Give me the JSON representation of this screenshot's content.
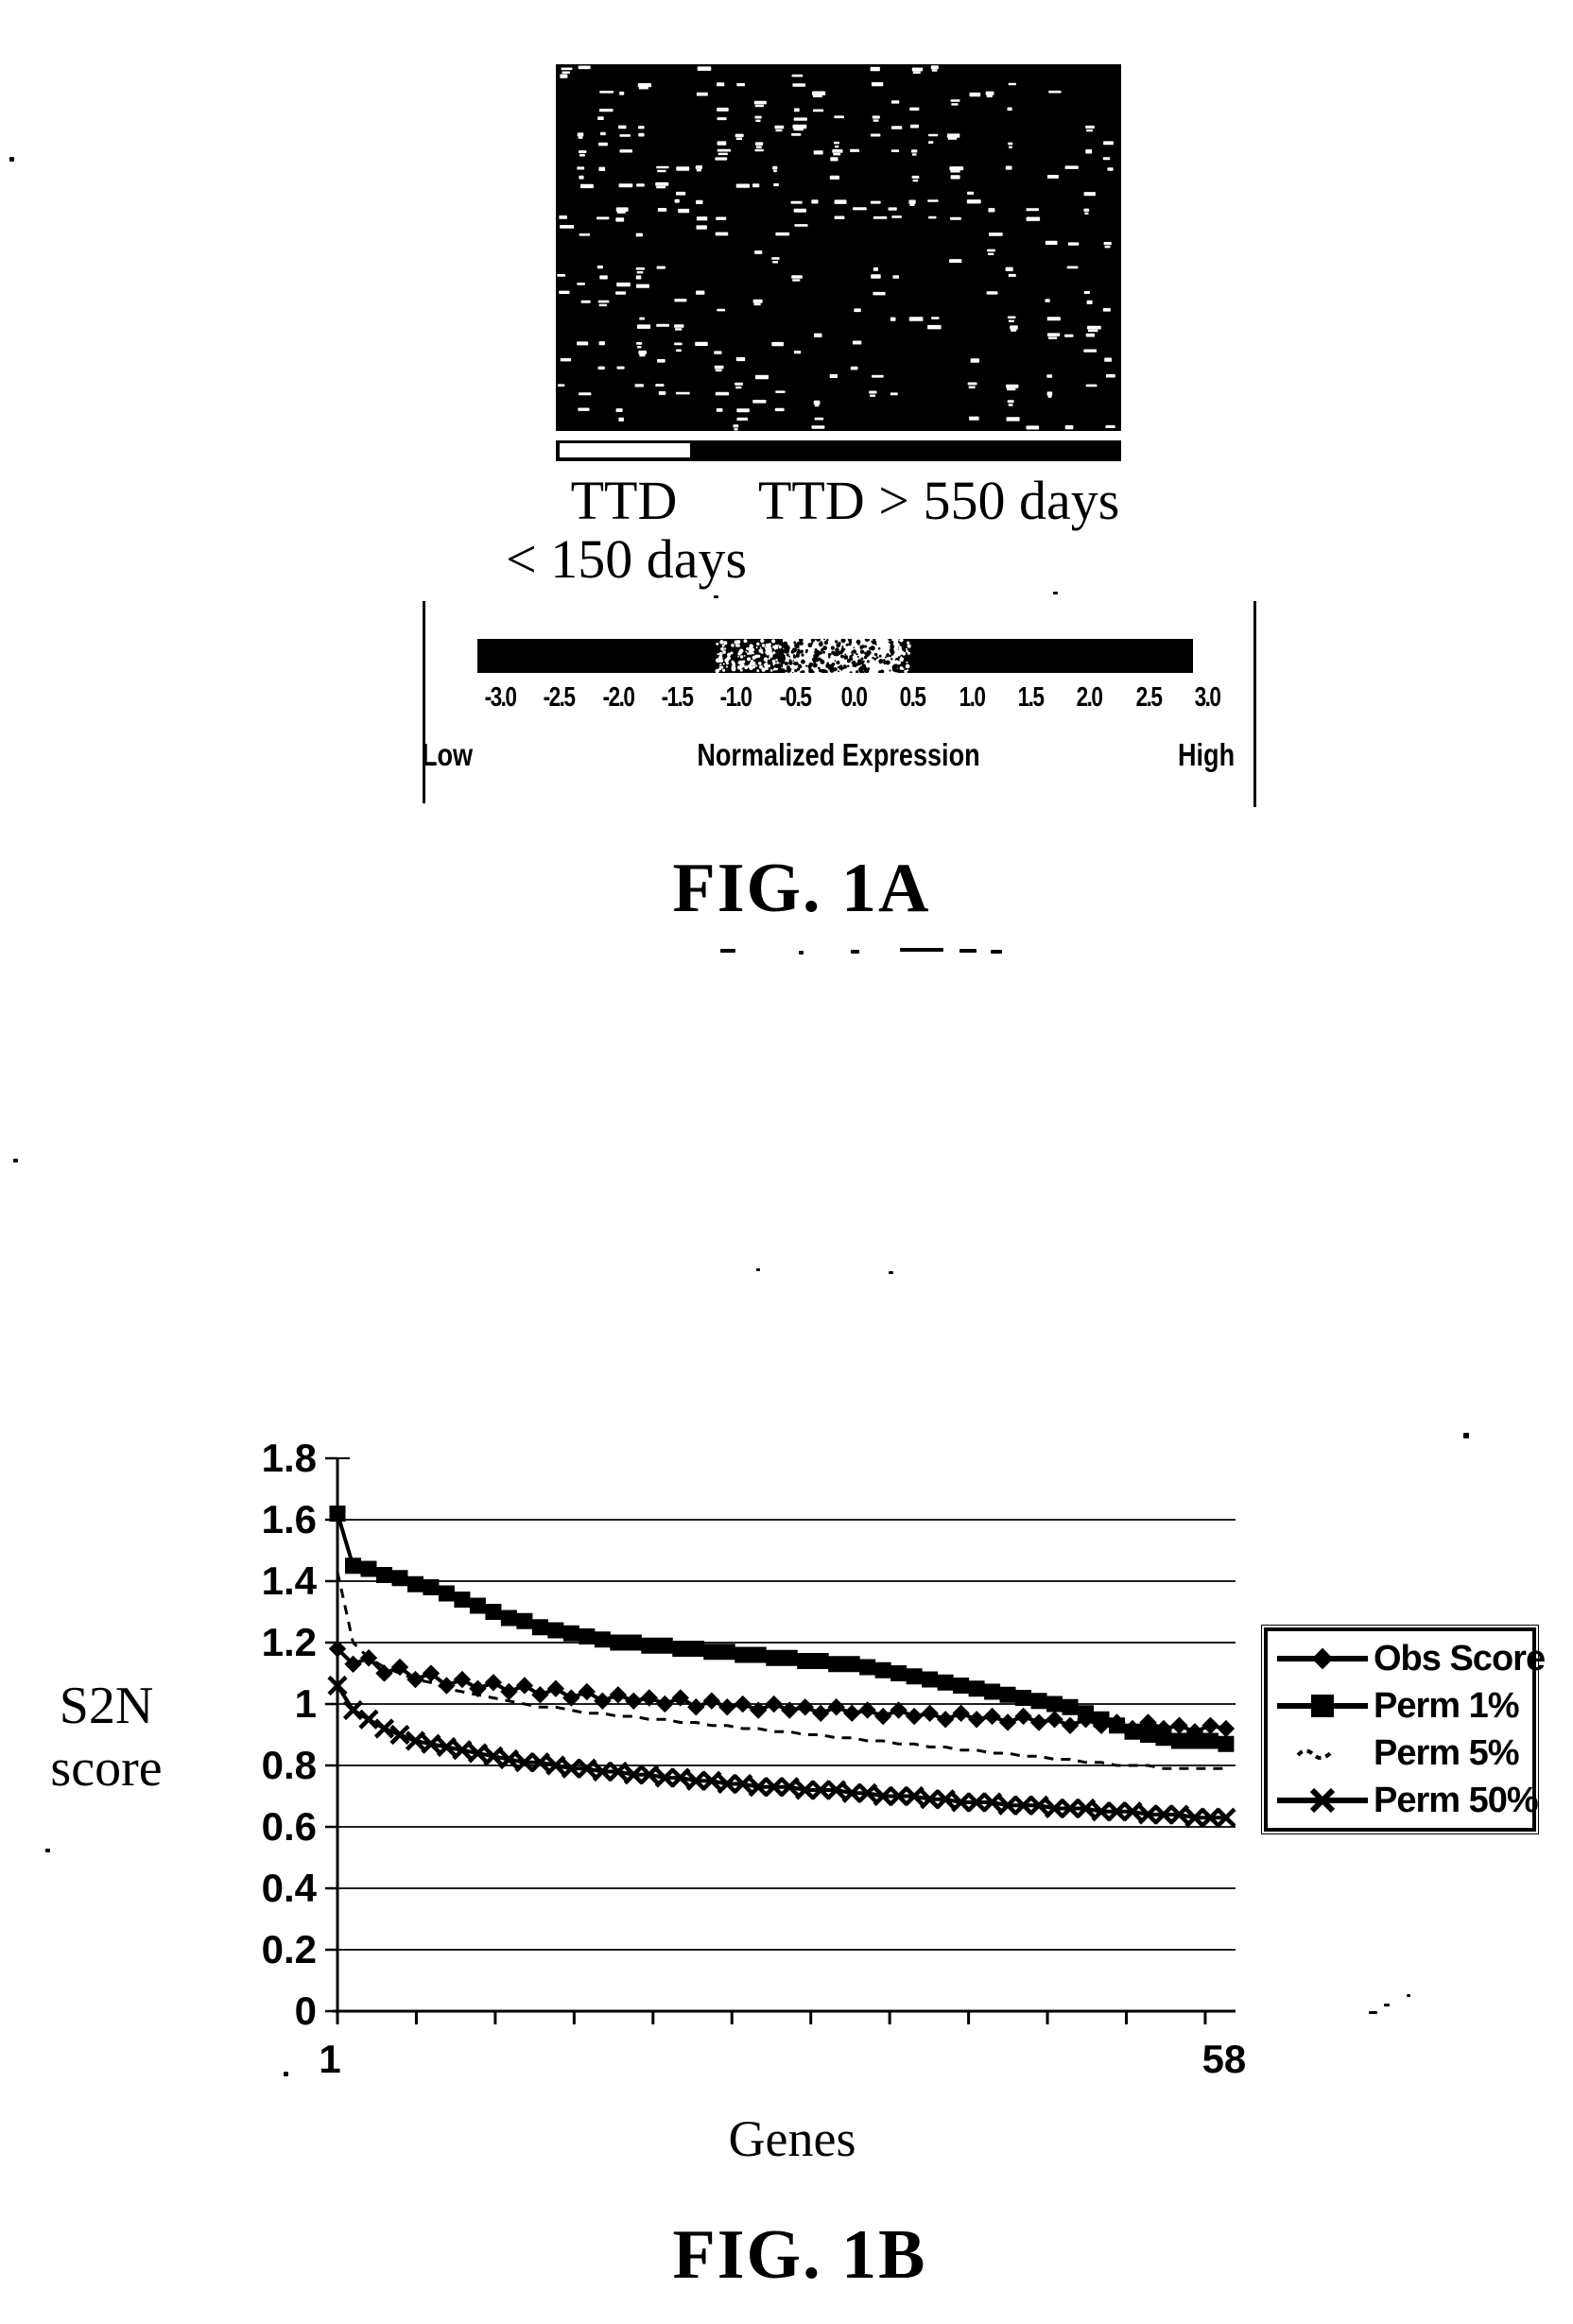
{
  "colors": {
    "ink": "#000000",
    "paper": "#ffffff"
  },
  "figure_1a": {
    "caption": "FIG. 1A",
    "group_bar": {
      "left_group_label_line1": "TTD",
      "left_group_label_line2": "< 150 days",
      "right_group_label": "TTD > 550 days"
    },
    "colorbar": {
      "tick_labels": [
        "-3.0",
        "-2.5",
        "-2.0",
        "-1.5",
        "-1.0",
        "-0.5",
        "0.0",
        "0.5",
        "1.0",
        "1.5",
        "2.0",
        "2.5",
        "3.0"
      ],
      "axis_label": "Normalized Expression",
      "low_label": "Low",
      "high_label": "High"
    }
  },
  "figure_1b": {
    "caption": "FIG. 1B",
    "y_axis_label_line1": "S2N",
    "y_axis_label_line2": "score",
    "x_axis_label": "Genes",
    "x_tick_labels": [
      "1",
      "58"
    ],
    "y_tick_labels": [
      "1.8",
      "1.6",
      "1.4",
      "1.2",
      "1",
      "0.8",
      "0.6",
      "0.4",
      "0.2",
      "0"
    ]
  },
  "chart_data": {
    "type": "line",
    "title": "",
    "xlabel": "Genes",
    "ylabel": "S2N score",
    "x_range": [
      1,
      58
    ],
    "ylim": [
      0,
      1.8
    ],
    "y_ticks": [
      1.8,
      1.6,
      1.4,
      1.2,
      1.0,
      0.8,
      0.6,
      0.4,
      0.2,
      0
    ],
    "grid": true,
    "legend_position": "right",
    "series": [
      {
        "name": "Obs Score",
        "marker": "diamond",
        "line": "solid",
        "values": [
          1.18,
          1.13,
          1.15,
          1.1,
          1.12,
          1.08,
          1.1,
          1.06,
          1.08,
          1.05,
          1.07,
          1.04,
          1.06,
          1.03,
          1.05,
          1.02,
          1.04,
          1.01,
          1.03,
          1.01,
          1.02,
          1.0,
          1.02,
          0.99,
          1.01,
          0.99,
          1.0,
          0.98,
          1.0,
          0.98,
          0.99,
          0.97,
          0.99,
          0.97,
          0.98,
          0.96,
          0.98,
          0.96,
          0.97,
          0.95,
          0.97,
          0.95,
          0.96,
          0.94,
          0.96,
          0.94,
          0.95,
          0.93,
          0.95,
          0.93,
          0.94,
          0.92,
          0.94,
          0.92,
          0.93,
          0.91,
          0.93,
          0.92
        ]
      },
      {
        "name": "Perm 1%",
        "marker": "square",
        "line": "solid",
        "values": [
          1.62,
          1.45,
          1.44,
          1.42,
          1.41,
          1.39,
          1.38,
          1.36,
          1.34,
          1.32,
          1.3,
          1.28,
          1.27,
          1.25,
          1.24,
          1.23,
          1.22,
          1.21,
          1.2,
          1.2,
          1.19,
          1.19,
          1.18,
          1.18,
          1.17,
          1.17,
          1.16,
          1.16,
          1.15,
          1.15,
          1.14,
          1.14,
          1.13,
          1.13,
          1.12,
          1.11,
          1.1,
          1.09,
          1.08,
          1.07,
          1.06,
          1.05,
          1.04,
          1.03,
          1.02,
          1.01,
          1.0,
          0.99,
          0.97,
          0.95,
          0.93,
          0.91,
          0.9,
          0.89,
          0.88,
          0.88,
          0.88,
          0.87
        ]
      },
      {
        "name": "Perm 5%",
        "marker": "none",
        "line": "dashed",
        "values": [
          1.43,
          1.2,
          1.15,
          1.12,
          1.1,
          1.08,
          1.07,
          1.05,
          1.04,
          1.03,
          1.02,
          1.01,
          1.0,
          0.99,
          0.99,
          0.98,
          0.97,
          0.97,
          0.96,
          0.96,
          0.95,
          0.95,
          0.94,
          0.94,
          0.93,
          0.93,
          0.92,
          0.92,
          0.91,
          0.91,
          0.9,
          0.9,
          0.89,
          0.89,
          0.88,
          0.88,
          0.87,
          0.87,
          0.86,
          0.86,
          0.85,
          0.85,
          0.84,
          0.84,
          0.83,
          0.83,
          0.82,
          0.82,
          0.81,
          0.81,
          0.8,
          0.8,
          0.8,
          0.79,
          0.79,
          0.79,
          0.79,
          0.79
        ]
      },
      {
        "name": "Perm 50%",
        "marker": "x",
        "line": "solid",
        "values": [
          1.06,
          0.98,
          0.95,
          0.92,
          0.9,
          0.88,
          0.87,
          0.86,
          0.85,
          0.84,
          0.83,
          0.82,
          0.81,
          0.81,
          0.8,
          0.79,
          0.79,
          0.78,
          0.78,
          0.77,
          0.77,
          0.76,
          0.76,
          0.75,
          0.75,
          0.74,
          0.74,
          0.73,
          0.73,
          0.73,
          0.72,
          0.72,
          0.72,
          0.71,
          0.71,
          0.7,
          0.7,
          0.7,
          0.69,
          0.69,
          0.68,
          0.68,
          0.68,
          0.67,
          0.67,
          0.67,
          0.66,
          0.66,
          0.66,
          0.65,
          0.65,
          0.65,
          0.64,
          0.64,
          0.64,
          0.63,
          0.63,
          0.63
        ]
      }
    ]
  }
}
